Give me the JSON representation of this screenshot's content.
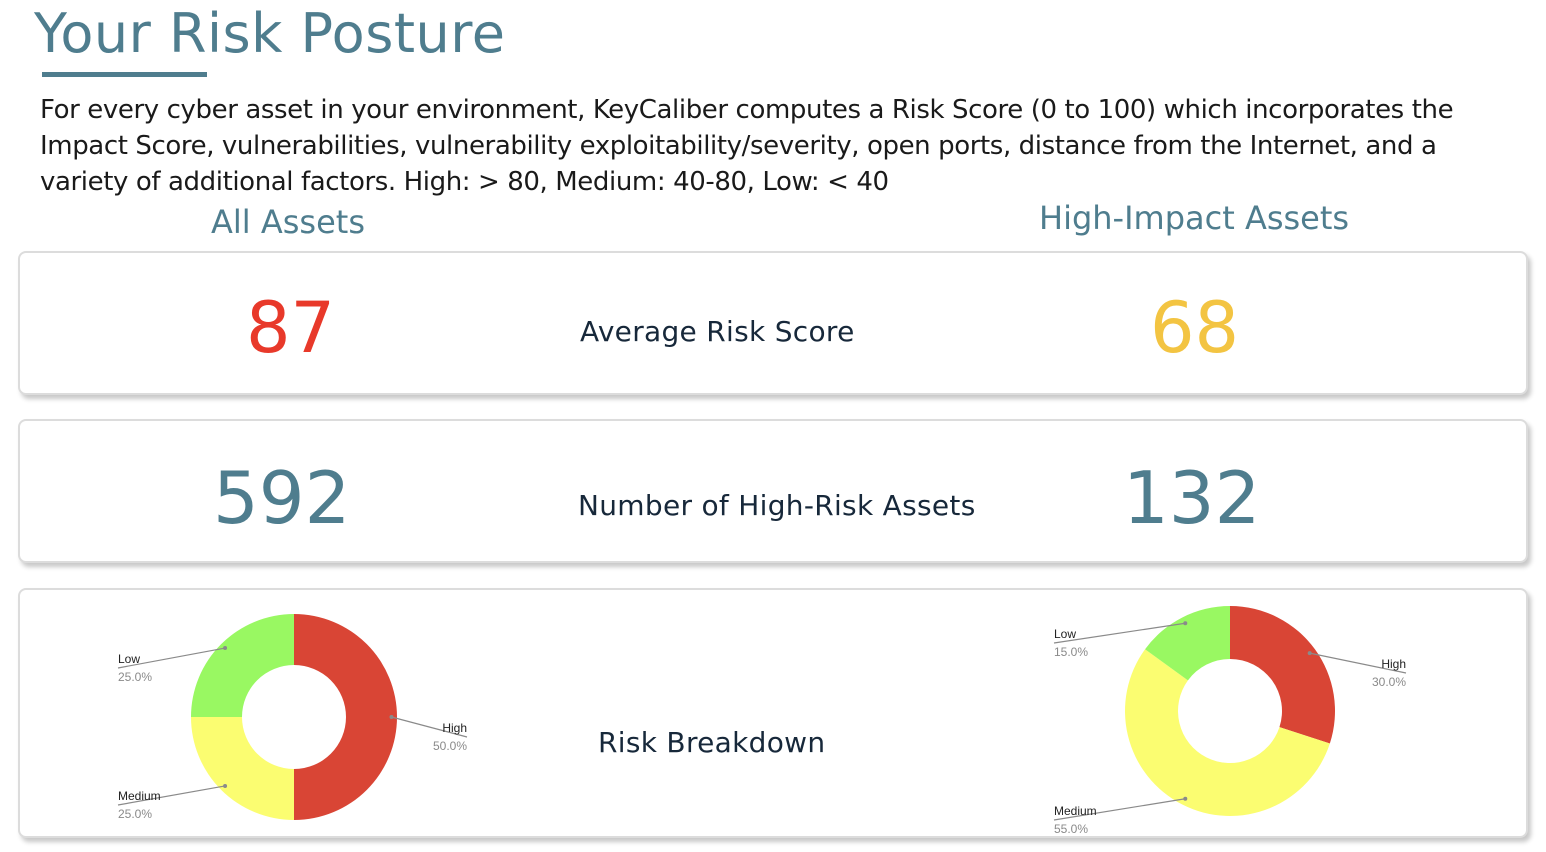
{
  "header": {
    "title": "Your Risk Posture",
    "description": "For every cyber asset in your environment, KeyCaliber computes a Risk Score (0 to 100) which incorporates the Impact Score, vulnerabilities, vulnerability exploitability/severity, open ports, distance from the Internet, and a variety of additional factors. High: > 80, Medium: 40-80, Low: < 40"
  },
  "columns": {
    "all": "All Assets",
    "high_impact": "High-Impact Assets"
  },
  "metrics": {
    "avg_risk": {
      "label": "Average Risk Score",
      "all": "87",
      "high_impact": "68",
      "all_color": "#e8392a",
      "high_impact_color": "#f3c442"
    },
    "high_risk_count": {
      "label": "Number of High-Risk Assets",
      "all": "592",
      "high_impact": "132",
      "color": "#4f7d8e"
    },
    "breakdown": {
      "label": "Risk Breakdown"
    }
  },
  "chart_data": [
    {
      "type": "pie",
      "donut": true,
      "labels": [
        "High",
        "Medium",
        "Low"
      ],
      "values": [
        50.0,
        25.0,
        25.0
      ],
      "value_labels": [
        "50.0%",
        "25.0%",
        "25.0%"
      ],
      "colors": [
        "#d94535",
        "#fbfd71",
        "#99f862"
      ]
    },
    {
      "type": "pie",
      "donut": true,
      "labels": [
        "High",
        "Medium",
        "Low"
      ],
      "values": [
        30.0,
        55.0,
        15.0
      ],
      "value_labels": [
        "30.0%",
        "55.0%",
        "15.0%"
      ],
      "colors": [
        "#d94535",
        "#fbfd71",
        "#99f862"
      ]
    }
  ]
}
